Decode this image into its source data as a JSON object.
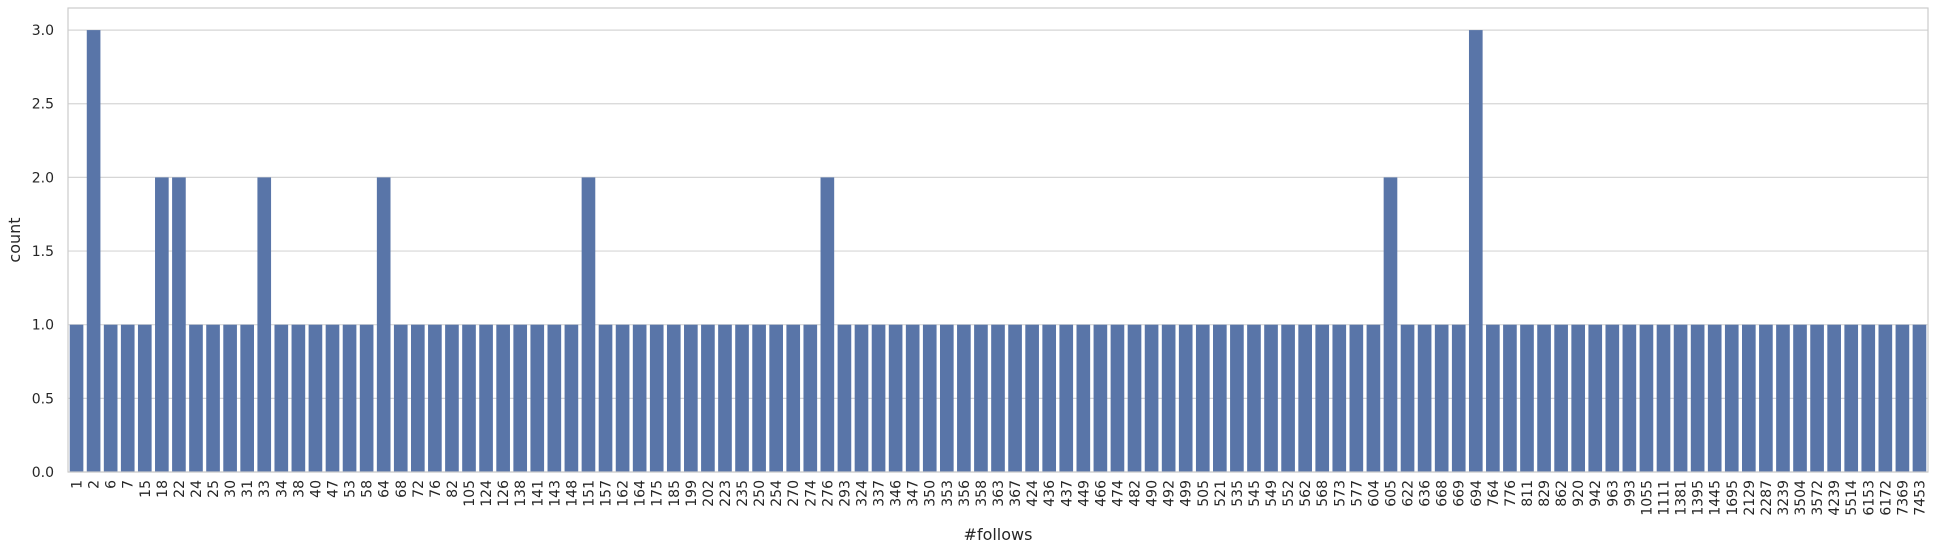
{
  "chart_data": {
    "type": "bar",
    "xlabel": "#follows",
    "ylabel": "count",
    "ylim": [
      0,
      3.15
    ],
    "yticks": [
      0.0,
      0.5,
      1.0,
      1.5,
      2.0,
      2.5,
      3.0
    ],
    "ytick_labels": [
      "0.0",
      "0.5",
      "1.0",
      "1.5",
      "2.0",
      "2.5",
      "3.0"
    ],
    "grid": "horizontal",
    "bar_color": "#5975a8",
    "categories": [
      "1",
      "2",
      "6",
      "7",
      "15",
      "18",
      "22",
      "24",
      "25",
      "30",
      "31",
      "33",
      "34",
      "38",
      "40",
      "47",
      "53",
      "58",
      "64",
      "68",
      "72",
      "76",
      "82",
      "105",
      "124",
      "126",
      "138",
      "141",
      "143",
      "148",
      "151",
      "157",
      "162",
      "164",
      "175",
      "185",
      "199",
      "202",
      "223",
      "235",
      "250",
      "254",
      "270",
      "274",
      "276",
      "293",
      "324",
      "337",
      "346",
      "347",
      "350",
      "353",
      "356",
      "358",
      "363",
      "367",
      "424",
      "436",
      "437",
      "449",
      "466",
      "474",
      "482",
      "490",
      "492",
      "499",
      "505",
      "521",
      "535",
      "545",
      "549",
      "552",
      "562",
      "568",
      "573",
      "577",
      "604",
      "605",
      "622",
      "636",
      "668",
      "669",
      "694",
      "764",
      "776",
      "811",
      "829",
      "862",
      "920",
      "942",
      "963",
      "993",
      "1055",
      "1111",
      "1381",
      "1395",
      "1445",
      "1695",
      "2129",
      "2287",
      "3239",
      "3504",
      "3572",
      "4239",
      "5514",
      "6153",
      "6172",
      "7369",
      "7453"
    ],
    "values": [
      1,
      3,
      1,
      1,
      1,
      2,
      2,
      1,
      1,
      1,
      1,
      2,
      1,
      1,
      1,
      1,
      1,
      1,
      2,
      1,
      1,
      1,
      1,
      1,
      1,
      1,
      1,
      1,
      1,
      1,
      2,
      1,
      1,
      1,
      1,
      1,
      1,
      1,
      1,
      1,
      1,
      1,
      1,
      1,
      2,
      1,
      1,
      1,
      1,
      1,
      1,
      1,
      1,
      1,
      1,
      1,
      1,
      1,
      1,
      1,
      1,
      1,
      1,
      1,
      1,
      1,
      1,
      1,
      1,
      1,
      1,
      1,
      1,
      1,
      1,
      1,
      1,
      2,
      1,
      1,
      1,
      1,
      3,
      1,
      1,
      1,
      1,
      1,
      1,
      1,
      1,
      1,
      1,
      1,
      1,
      1,
      1,
      1,
      1,
      1,
      1,
      1,
      1,
      1,
      1,
      1,
      1,
      1,
      1
    ]
  }
}
